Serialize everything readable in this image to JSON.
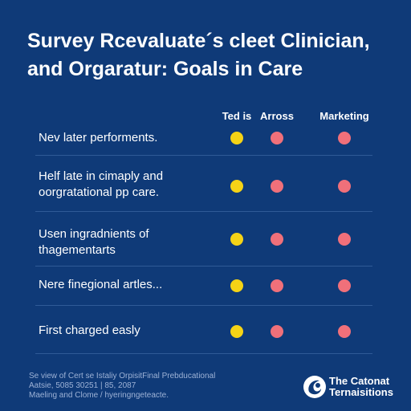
{
  "title_line1": "Survey Rcevaluate´s cleet Clinician,",
  "title_line2": "and Orgaratur: Goals in Care",
  "columns": [
    "Ted is",
    "Arross",
    "Marketing"
  ],
  "rows": [
    {
      "line1": "Nev later performents.",
      "line2": "",
      "dots": [
        "yellow",
        "pink",
        "pink"
      ]
    },
    {
      "line1": "Helf late in cimaply and",
      "line2": "oorgratational pp care.",
      "dots": [
        "yellow",
        "pink",
        "pink"
      ]
    },
    {
      "line1": "Usen ingradnients of",
      "line2": "thagementarts",
      "dots": [
        "yellow",
        "pink",
        "pink"
      ]
    },
    {
      "line1": "Nere finegional artles...",
      "line2": "",
      "dots": [
        "yellow",
        "pink",
        "pink"
      ]
    },
    {
      "line1": "First charged easly",
      "line2": "",
      "dots": [
        "yellow",
        "pink",
        "pink"
      ]
    }
  ],
  "colors": {
    "background": "#0f3a78",
    "yellow": "#f5d316",
    "pink": "#f0707a"
  },
  "footnote_line1": "Se view of Cert se Istaliy OrpisitFinal Prebducational",
  "footnote_line2": "Aatsie, 5085 30251 | 85, 2087",
  "footnote_line3": "Maeling and Clome / hyeringngeteacte.",
  "logo": {
    "line1": "The Catonat",
    "line2": "Ternaisitions",
    "icon": "globe-swirl-icon"
  }
}
